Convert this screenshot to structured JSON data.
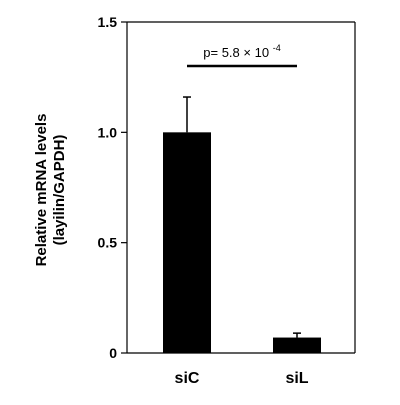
{
  "chart_data": {
    "type": "bar",
    "categories": [
      "siC",
      "siL"
    ],
    "values": [
      1.0,
      0.07
    ],
    "errors": [
      0.16,
      0.02
    ],
    "ylabel_line1": "Relative  mRNA levels",
    "ylabel_line2": "(layilin/GAPDH)",
    "ylim": [
      0,
      1.5
    ],
    "yticks": [
      "0",
      "0.5",
      "1.0",
      "1.5"
    ],
    "ytick_values": [
      0,
      0.5,
      1.0,
      1.5
    ],
    "annotation": {
      "text": "p= 5.8",
      "times": "×",
      "base": " 10",
      "exponent": "-4"
    },
    "grid": false,
    "bar_color": "#000000"
  }
}
